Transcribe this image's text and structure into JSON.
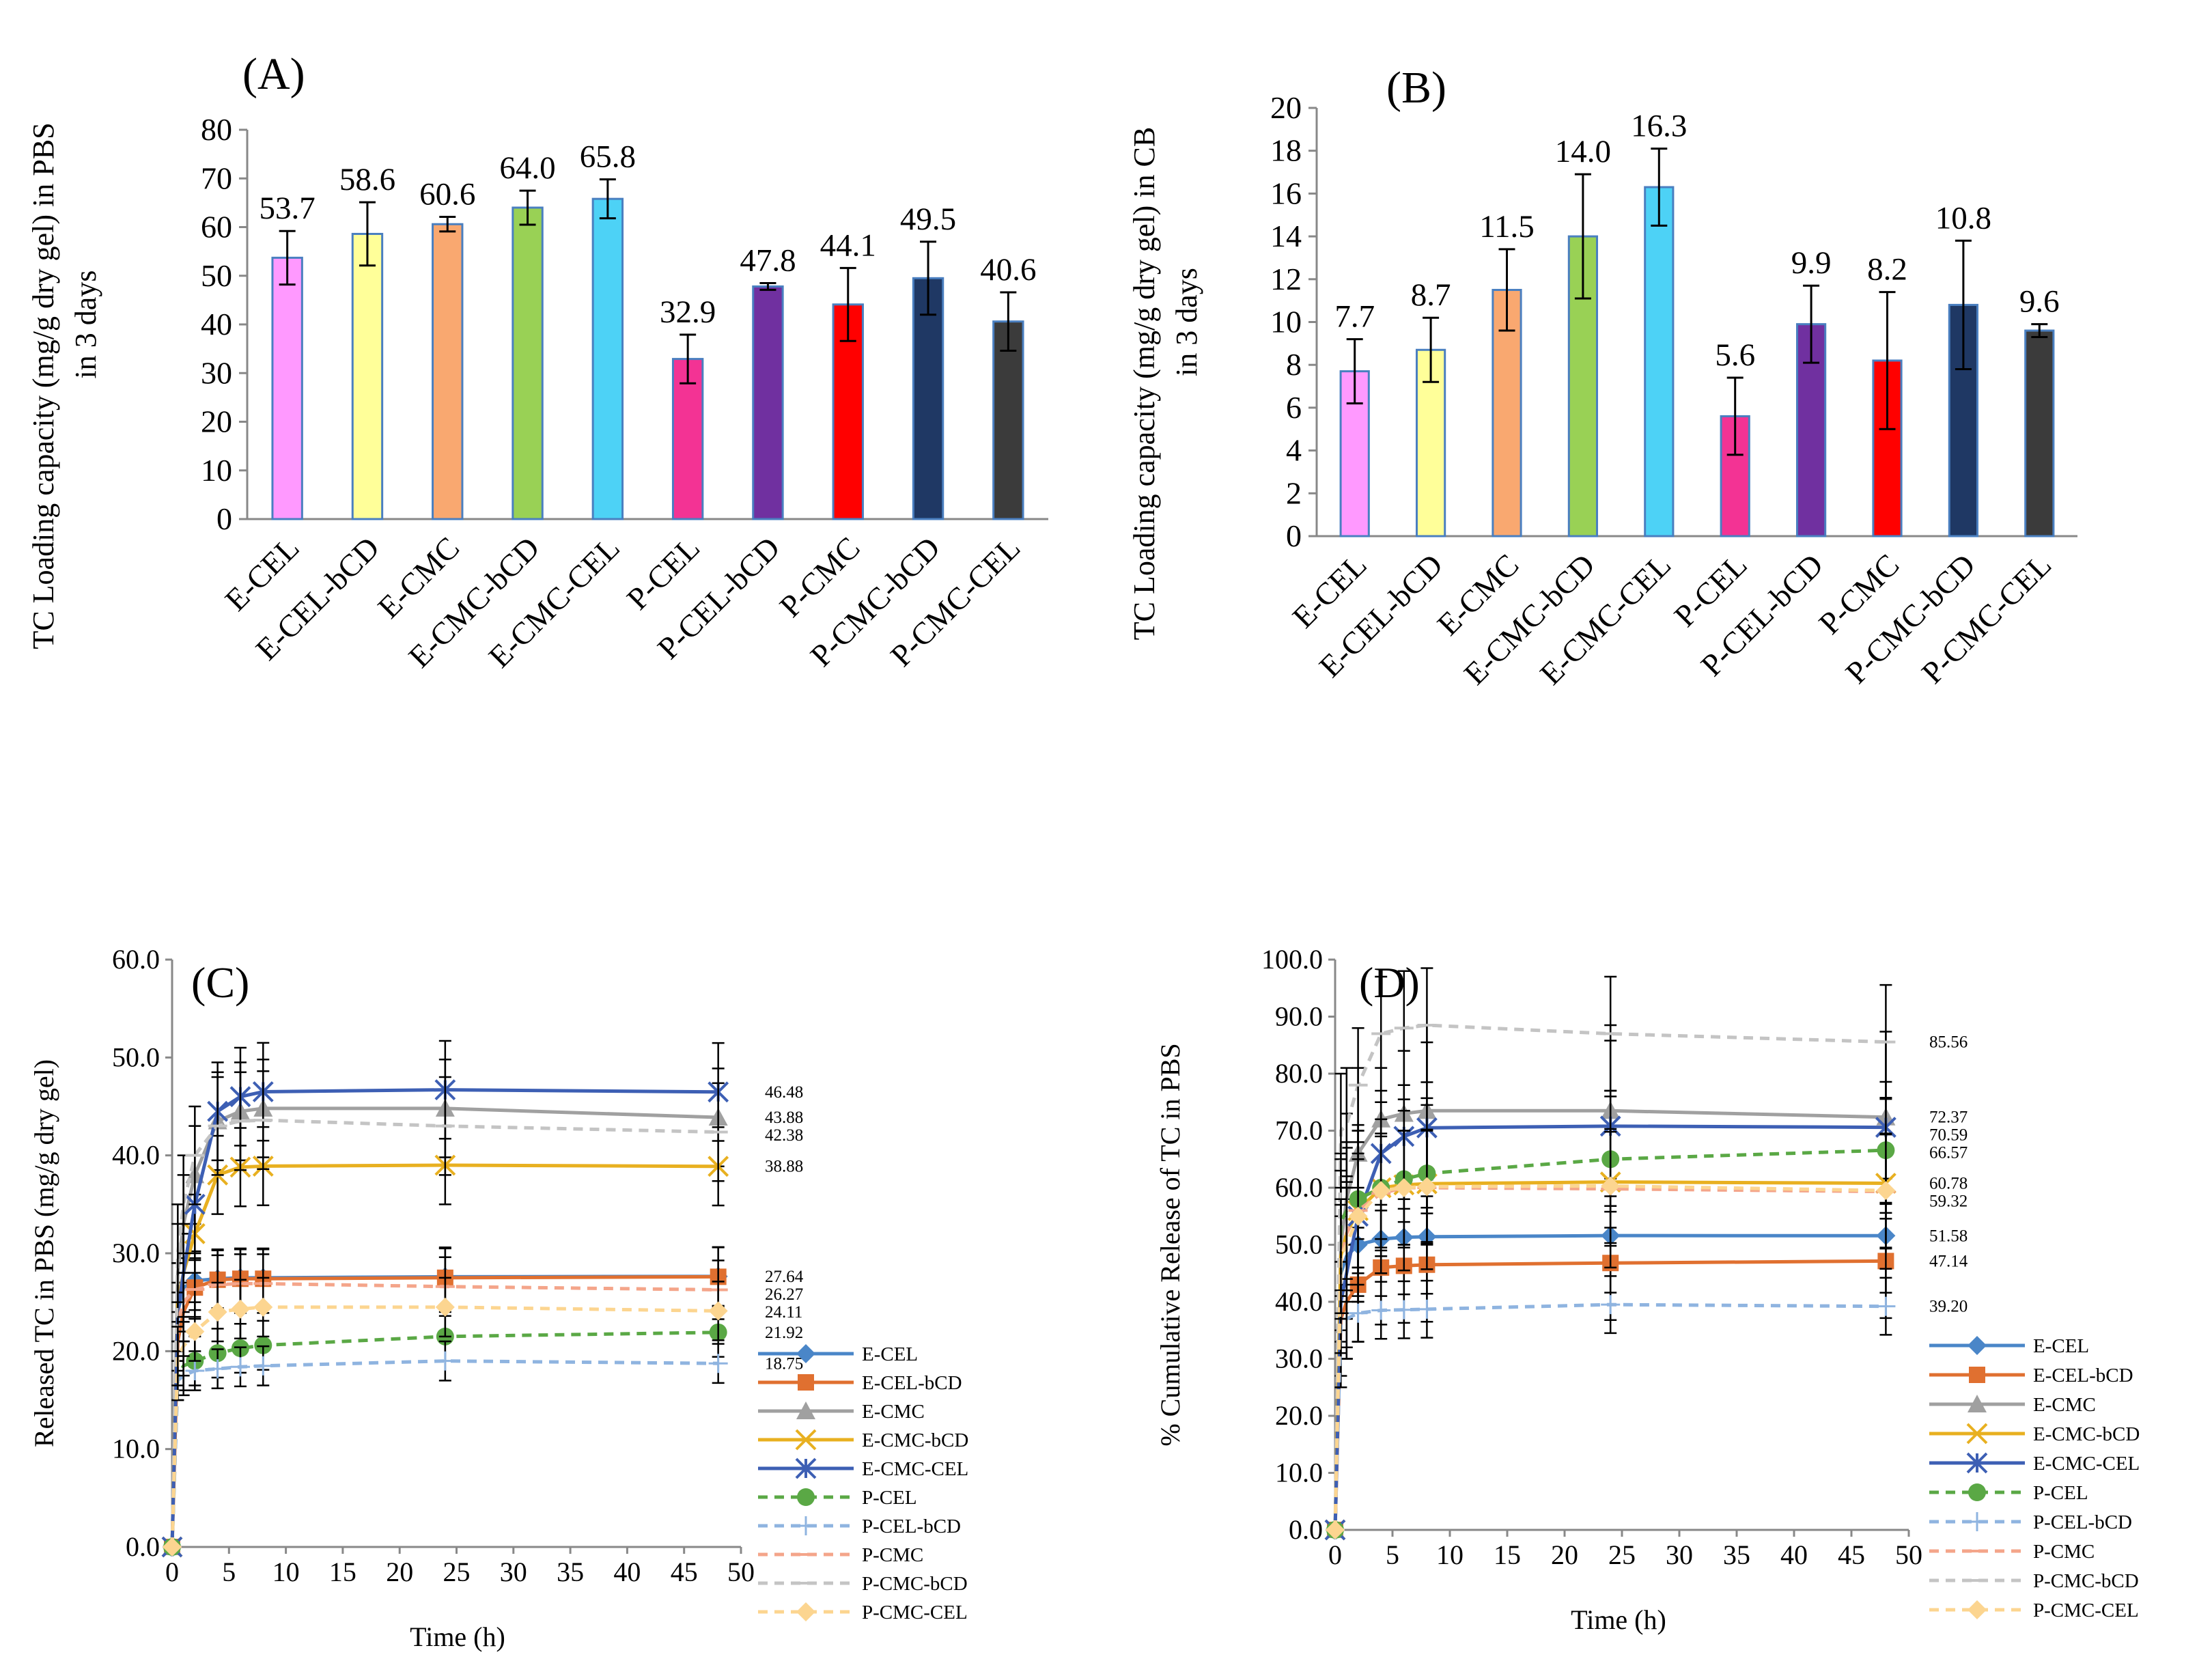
{
  "chart_data": [
    {
      "id": "A",
      "type": "bar",
      "panel_label": "(A)",
      "title": "",
      "ylabel_lines": [
        "TC Loading capacity (mg/g dry gel) in PBS",
        "in 3 days"
      ],
      "xlabel": "",
      "ylim": [
        0,
        80
      ],
      "yticks": [
        0,
        10,
        20,
        30,
        40,
        50,
        60,
        70,
        80
      ],
      "categories": [
        "E-CEL",
        "E-CEL-bCD",
        "E-CMC",
        "E-CMC-bCD",
        "E-CMC-CEL",
        "P-CEL",
        "P-CEL-bCD",
        "P-CMC",
        "P-CMC-bCD",
        "P-CMC-CEL"
      ],
      "values": [
        53.7,
        58.6,
        60.6,
        64.0,
        65.8,
        32.9,
        47.8,
        44.1,
        49.5,
        40.6
      ],
      "value_labels": [
        "53.7",
        "58.6",
        "60.6",
        "64.0",
        "65.8",
        "32.9",
        "47.8",
        "44.1",
        "49.5",
        "40.6"
      ],
      "errors": [
        5.5,
        6.5,
        1.5,
        3.5,
        4.0,
        5.0,
        0.7,
        7.5,
        7.5,
        6.0
      ],
      "colors": [
        "#ff99ff",
        "#ffff99",
        "#f9a870",
        "#99d155",
        "#4dd2f6",
        "#f33394",
        "#7030a0",
        "#ff0000",
        "#1f3864",
        "#3b3b3b"
      ]
    },
    {
      "id": "B",
      "type": "bar",
      "panel_label": "(B)",
      "title": "",
      "ylabel_lines": [
        "TC Loading capacity (mg/g dry gel) in CB",
        "in 3 days"
      ],
      "xlabel": "",
      "ylim": [
        0,
        20
      ],
      "yticks": [
        0,
        2,
        4,
        6,
        8,
        10,
        12,
        14,
        16,
        18,
        20
      ],
      "categories": [
        "E-CEL",
        "E-CEL-bCD",
        "E-CMC",
        "E-CMC-bCD",
        "E-CMC-CEL",
        "P-CEL",
        "P-CEL-bCD",
        "P-CMC",
        "P-CMC-bCD",
        "P-CMC-CEL"
      ],
      "values": [
        7.7,
        8.7,
        11.5,
        14.0,
        16.3,
        5.6,
        9.9,
        8.2,
        10.8,
        9.6
      ],
      "value_labels": [
        "7.7",
        "8.7",
        "11.5",
        "14.0",
        "16.3",
        "5.6",
        "9.9",
        "8.2",
        "10.8",
        "9.6"
      ],
      "errors": [
        1.5,
        1.5,
        1.9,
        2.9,
        1.8,
        1.8,
        1.8,
        3.2,
        3.0,
        0.3
      ],
      "colors": [
        "#ff99ff",
        "#ffff99",
        "#f9a870",
        "#99d155",
        "#4dd2f6",
        "#f33394",
        "#7030a0",
        "#ff0000",
        "#1f3864",
        "#3b3b3b"
      ]
    },
    {
      "id": "C",
      "type": "line",
      "panel_label": "(C)",
      "title": "",
      "xlabel": "Time (h)",
      "ylabel": "Released TC in PBS (mg/g dry gel)",
      "xlim": [
        0,
        50
      ],
      "ylim": [
        0,
        60
      ],
      "xticks": [
        0,
        5,
        10,
        15,
        20,
        25,
        30,
        35,
        40,
        45,
        50
      ],
      "yticks": [
        0,
        10,
        20,
        30,
        40,
        50,
        60
      ],
      "ytick_labels": [
        "0.0",
        "10.0",
        "20.0",
        "30.0",
        "40.0",
        "50.0",
        "60.0"
      ],
      "x": [
        0,
        0.5,
        1,
        2,
        4,
        6,
        8,
        24,
        48
      ],
      "series": [
        {
          "name": "E-CEL",
          "color": "#4a86c8",
          "dash": false,
          "marker": "diamond",
          "values": [
            0,
            24.0,
            26.5,
            27.2,
            27.4,
            27.5,
            27.5,
            27.6,
            27.64
          ],
          "end_label": "27.64",
          "error": 3.0
        },
        {
          "name": "E-CEL-bCD",
          "color": "#e07030",
          "dash": false,
          "marker": "square",
          "values": [
            0,
            21.0,
            24.0,
            26.5,
            27.3,
            27.4,
            27.4,
            27.5,
            27.6
          ],
          "end_label": "",
          "error": 3.0
        },
        {
          "name": "E-CMC",
          "color": "#a0a0a0",
          "dash": false,
          "marker": "triangle",
          "values": [
            0,
            28.0,
            33.0,
            38.0,
            43.5,
            44.5,
            44.8,
            44.8,
            43.88
          ],
          "end_label": "43.88",
          "error": 5.0
        },
        {
          "name": "E-CMC-bCD",
          "color": "#e8b020",
          "dash": false,
          "marker": "x",
          "values": [
            0,
            25.0,
            28.0,
            32.0,
            38.0,
            38.8,
            38.9,
            39.0,
            38.88
          ],
          "end_label": "38.88",
          "error": 4.0
        },
        {
          "name": "E-CMC-CEL",
          "color": "#3d5fb4",
          "dash": false,
          "marker": "star",
          "values": [
            0,
            24.0,
            28.0,
            35.0,
            44.5,
            46.0,
            46.5,
            46.7,
            46.48
          ],
          "end_label": "46.48",
          "error": 5.0
        },
        {
          "name": "P-CEL",
          "color": "#5aa845",
          "dash": true,
          "marker": "circle",
          "values": [
            0,
            17.5,
            18.5,
            19.0,
            19.8,
            20.3,
            20.6,
            21.5,
            21.92
          ],
          "end_label": "21.92",
          "error": 2.5
        },
        {
          "name": "P-CEL-bCD",
          "color": "#8fb4e0",
          "dash": true,
          "marker": "plus",
          "values": [
            0,
            17.0,
            17.5,
            18.0,
            18.2,
            18.4,
            18.5,
            19.0,
            18.75
          ],
          "end_label": "18.75",
          "error": 2.0
        },
        {
          "name": "P-CMC",
          "color": "#f4a58a",
          "dash": true,
          "marker": "dash",
          "values": [
            0,
            23.0,
            25.0,
            26.3,
            26.8,
            26.9,
            26.9,
            26.6,
            26.27
          ],
          "end_label": "26.27",
          "error": 3.0
        },
        {
          "name": "P-CMC-bCD",
          "color": "#c4c4c4",
          "dash": true,
          "marker": "dash",
          "values": [
            0,
            30.0,
            35.0,
            40.0,
            43.0,
            43.5,
            43.6,
            43.0,
            42.38
          ],
          "end_label": "42.38",
          "error": 5.0
        },
        {
          "name": "P-CMC-CEL",
          "color": "#fcd590",
          "dash": true,
          "marker": "diamond",
          "values": [
            0,
            19.5,
            20.5,
            22.0,
            24.0,
            24.3,
            24.5,
            24.5,
            24.11
          ],
          "end_label": "24.11",
          "error": 3.0
        }
      ]
    },
    {
      "id": "D",
      "type": "line",
      "panel_label": "(D)",
      "title": "",
      "xlabel": "Time (h)",
      "ylabel": "% Cumulative  Release of TC in PBS",
      "xlim": [
        0,
        50
      ],
      "ylim": [
        0,
        100
      ],
      "xticks": [
        0,
        5,
        10,
        15,
        20,
        25,
        30,
        35,
        40,
        45,
        50
      ],
      "yticks": [
        0,
        10,
        20,
        30,
        40,
        50,
        60,
        70,
        80,
        90,
        100
      ],
      "ytick_labels": [
        "0.0",
        "10.0",
        "20.0",
        "30.0",
        "40.0",
        "50.0",
        "60.0",
        "70.0",
        "80.0",
        "90.0",
        "100.0"
      ],
      "x": [
        0,
        0.5,
        1,
        2,
        4,
        6,
        8,
        24,
        48
      ],
      "series": [
        {
          "name": "E-CEL",
          "color": "#4a86c8",
          "dash": false,
          "marker": "diamond",
          "values": [
            0,
            45.0,
            48.0,
            50.0,
            51.0,
            51.3,
            51.4,
            51.6,
            51.58
          ],
          "end_label": "51.58",
          "error": 10.0
        },
        {
          "name": "E-CEL-bCD",
          "color": "#e07030",
          "dash": false,
          "marker": "square",
          "values": [
            0,
            37.0,
            40.0,
            43.0,
            46.0,
            46.3,
            46.5,
            46.8,
            47.14
          ],
          "end_label": "47.14",
          "error": 10.0
        },
        {
          "name": "E-CMC",
          "color": "#a0a0a0",
          "dash": false,
          "marker": "triangle",
          "values": [
            0,
            50.0,
            58.0,
            66.0,
            72.0,
            73.0,
            73.5,
            73.5,
            72.37
          ],
          "end_label": "72.37",
          "error": 15.0
        },
        {
          "name": "E-CMC-bCD",
          "color": "#e8b020",
          "dash": false,
          "marker": "x",
          "values": [
            0,
            48.0,
            52.0,
            56.0,
            60.0,
            60.5,
            60.7,
            61.0,
            60.78
          ],
          "end_label": "60.78",
          "error": 15.0
        },
        {
          "name": "E-CMC-CEL",
          "color": "#3d5fb4",
          "dash": false,
          "marker": "star",
          "values": [
            0,
            40.0,
            45.0,
            55.0,
            66.0,
            69.0,
            70.5,
            70.8,
            70.59
          ],
          "end_label": "70.59",
          "error": 15.0
        },
        {
          "name": "P-CEL",
          "color": "#5aa845",
          "dash": true,
          "marker": "circle",
          "values": [
            0,
            54.0,
            56.0,
            58.0,
            60.0,
            61.5,
            62.5,
            65.0,
            66.57
          ],
          "end_label": "66.57",
          "error": 12.0
        },
        {
          "name": "P-CEL-bCD",
          "color": "#8fb4e0",
          "dash": true,
          "marker": "plus",
          "values": [
            0,
            36.0,
            37.0,
            38.0,
            38.5,
            38.6,
            38.7,
            39.5,
            39.2
          ],
          "end_label": "39.20",
          "error": 5.0
        },
        {
          "name": "P-CMC",
          "color": "#f4a58a",
          "dash": true,
          "marker": "dash",
          "values": [
            0,
            47.0,
            52.0,
            56.0,
            59.0,
            60.0,
            60.0,
            59.8,
            59.32
          ],
          "end_label": "59.32",
          "error": 10.0
        },
        {
          "name": "P-CMC-bCD",
          "color": "#c4c4c4",
          "dash": true,
          "marker": "dash",
          "values": [
            0,
            70.0,
            71.0,
            78.0,
            87.0,
            88.0,
            88.5,
            87.0,
            85.56
          ],
          "end_label": "85.56",
          "error": 10.0
        },
        {
          "name": "P-CMC-CEL",
          "color": "#fcd590",
          "dash": true,
          "marker": "diamond",
          "values": [
            0,
            48.0,
            50.0,
            55.0,
            59.5,
            60.0,
            60.2,
            60.3,
            59.5
          ],
          "end_label": "",
          "error": 10.0
        }
      ]
    }
  ]
}
